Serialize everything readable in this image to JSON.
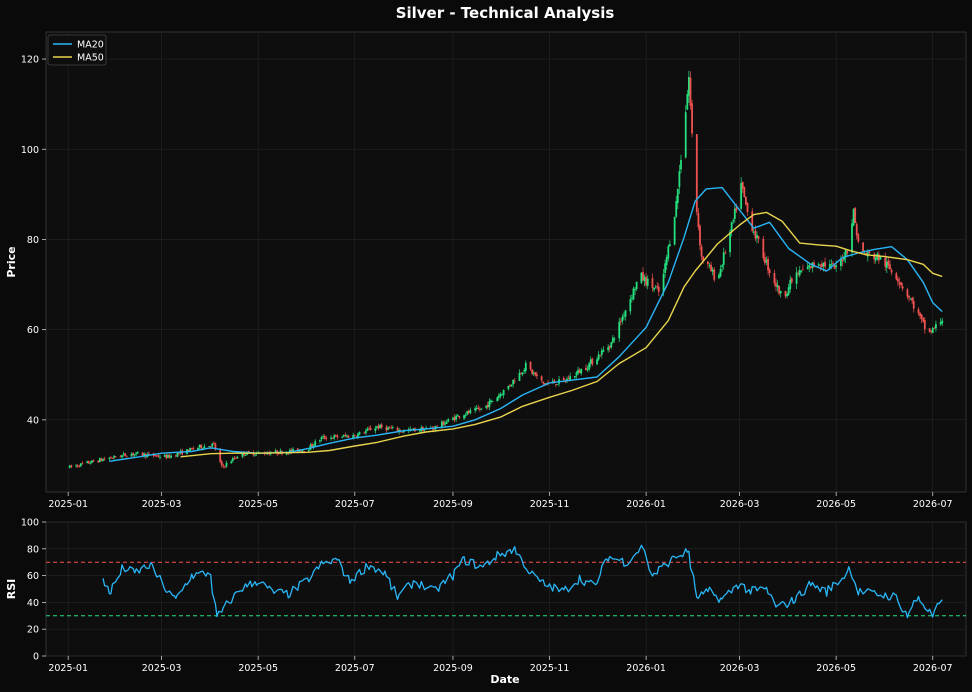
{
  "chart_data": [
    {
      "type": "candlestick",
      "title": "Silver - Technical Analysis",
      "ylabel": "Price",
      "xlabel": "",
      "x_range": [
        "2024-12-18",
        "2026-07-22"
      ],
      "ylim": [
        24,
        126
      ],
      "yticks": [
        40,
        60,
        80,
        100,
        120
      ],
      "xticks": [
        "2025-01",
        "2025-03",
        "2025-05",
        "2025-07",
        "2025-09",
        "2025-11",
        "2026-01",
        "2026-03",
        "2026-05",
        "2026-07"
      ],
      "grid": true,
      "legend": "top-left",
      "colors": {
        "up": "#26e07f",
        "down": "#ef5350",
        "ma20": "#29b6f6",
        "ma50": "#e8d44d"
      },
      "series": [
        {
          "name": "MA20",
          "color": "#29b6f6",
          "points": [
            [
              "2025-01-27",
              30.8
            ],
            [
              "2025-02-15",
              31.8
            ],
            [
              "2025-03-01",
              32.6
            ],
            [
              "2025-03-20",
              33.0
            ],
            [
              "2025-04-01",
              33.8
            ],
            [
              "2025-04-15",
              33.0
            ],
            [
              "2025-05-01",
              32.6
            ],
            [
              "2025-05-20",
              32.8
            ],
            [
              "2025-06-01",
              33.6
            ],
            [
              "2025-06-15",
              34.8
            ],
            [
              "2025-07-01",
              36.0
            ],
            [
              "2025-07-15",
              36.6
            ],
            [
              "2025-08-01",
              37.6
            ],
            [
              "2025-08-15",
              38.0
            ],
            [
              "2025-09-01",
              38.6
            ],
            [
              "2025-09-15",
              40.0
            ],
            [
              "2025-10-01",
              42.5
            ],
            [
              "2025-10-15",
              45.5
            ],
            [
              "2025-11-01",
              48.2
            ],
            [
              "2025-11-15",
              48.8
            ],
            [
              "2025-12-01",
              49.5
            ],
            [
              "2025-12-15",
              54.0
            ],
            [
              "2026-01-01",
              60.5
            ],
            [
              "2026-01-15",
              70.5
            ],
            [
              "2026-01-25",
              80.5
            ],
            [
              "2026-02-01",
              88.5
            ],
            [
              "2026-02-08",
              91.2
            ],
            [
              "2026-02-18",
              91.5
            ],
            [
              "2026-03-01",
              86.5
            ],
            [
              "2026-03-10",
              82.5
            ],
            [
              "2026-03-20",
              83.8
            ],
            [
              "2026-04-01",
              78.0
            ],
            [
              "2026-04-15",
              74.5
            ],
            [
              "2026-04-25",
              73.0
            ],
            [
              "2026-05-05",
              76.0
            ],
            [
              "2026-05-15",
              77.0
            ],
            [
              "2026-05-25",
              77.8
            ],
            [
              "2026-06-05",
              78.4
            ],
            [
              "2026-06-15",
              75.5
            ],
            [
              "2026-06-25",
              70.5
            ],
            [
              "2026-07-01",
              66.0
            ],
            [
              "2026-07-07",
              64.0
            ]
          ]
        },
        {
          "name": "MA50",
          "color": "#e8d44d",
          "points": [
            [
              "2025-03-13",
              31.8
            ],
            [
              "2025-04-01",
              32.5
            ],
            [
              "2025-04-15",
              32.6
            ],
            [
              "2025-05-01",
              32.6
            ],
            [
              "2025-06-01",
              32.8
            ],
            [
              "2025-06-15",
              33.2
            ],
            [
              "2025-07-01",
              34.2
            ],
            [
              "2025-07-15",
              35.0
            ],
            [
              "2025-08-01",
              36.4
            ],
            [
              "2025-08-15",
              37.3
            ],
            [
              "2025-09-01",
              38.0
            ],
            [
              "2025-09-15",
              39.0
            ],
            [
              "2025-10-01",
              40.6
            ],
            [
              "2025-10-15",
              43.0
            ],
            [
              "2025-11-01",
              45.0
            ],
            [
              "2025-11-15",
              46.5
            ],
            [
              "2025-12-01",
              48.5
            ],
            [
              "2025-12-15",
              52.5
            ],
            [
              "2026-01-01",
              56.0
            ],
            [
              "2026-01-15",
              62.0
            ],
            [
              "2026-01-25",
              69.5
            ],
            [
              "2026-02-01",
              73.0
            ],
            [
              "2026-02-15",
              79.0
            ],
            [
              "2026-03-01",
              83.2
            ],
            [
              "2026-03-10",
              85.5
            ],
            [
              "2026-03-18",
              86.0
            ],
            [
              "2026-03-28",
              84.0
            ],
            [
              "2026-04-08",
              79.2
            ],
            [
              "2026-04-20",
              78.8
            ],
            [
              "2026-05-01",
              78.5
            ],
            [
              "2026-05-10",
              77.5
            ],
            [
              "2026-05-20",
              76.6
            ],
            [
              "2026-06-01",
              76.2
            ],
            [
              "2026-06-15",
              75.5
            ],
            [
              "2026-06-25",
              74.5
            ],
            [
              "2026-07-01",
              72.5
            ],
            [
              "2026-07-07",
              71.8
            ]
          ]
        }
      ]
    },
    {
      "type": "line",
      "ylabel": "RSI",
      "xlabel": "Date",
      "x_range": [
        "2024-12-18",
        "2026-07-22"
      ],
      "ylim": [
        0,
        100
      ],
      "yticks": [
        0,
        20,
        40,
        60,
        80,
        100
      ],
      "xticks": [
        "2025-01",
        "2025-03",
        "2025-05",
        "2025-07",
        "2025-09",
        "2025-11",
        "2026-01",
        "2026-03",
        "2026-05",
        "2026-07"
      ],
      "thresholds": [
        {
          "value": 70,
          "color": "#ef5350"
        },
        {
          "value": 30,
          "color": "#26e07f"
        }
      ],
      "series": [
        {
          "name": "RSI",
          "color": "#29b6f6",
          "points": [
            [
              "2025-01-23",
              56
            ],
            [
              "2025-01-28",
              48
            ],
            [
              "2025-02-05",
              66
            ],
            [
              "2025-02-12",
              62
            ],
            [
              "2025-02-22",
              68
            ],
            [
              "2025-03-05",
              48
            ],
            [
              "2025-03-10",
              42
            ],
            [
              "2025-03-20",
              60
            ],
            [
              "2025-04-01",
              62
            ],
            [
              "2025-04-05",
              28
            ],
            [
              "2025-04-10",
              36
            ],
            [
              "2025-04-20",
              50
            ],
            [
              "2025-05-01",
              56
            ],
            [
              "2025-05-10",
              48
            ],
            [
              "2025-05-20",
              46
            ],
            [
              "2025-06-01",
              56
            ],
            [
              "2025-06-10",
              68
            ],
            [
              "2025-06-20",
              72
            ],
            [
              "2025-06-28",
              56
            ],
            [
              "2025-07-10",
              68
            ],
            [
              "2025-07-20",
              62
            ],
            [
              "2025-07-28",
              44
            ],
            [
              "2025-08-08",
              56
            ],
            [
              "2025-08-20",
              48
            ],
            [
              "2025-09-01",
              60
            ],
            [
              "2025-09-08",
              72
            ],
            [
              "2025-09-20",
              66
            ],
            [
              "2025-09-28",
              74
            ],
            [
              "2025-10-10",
              80
            ],
            [
              "2025-10-20",
              62
            ],
            [
              "2025-10-28",
              54
            ],
            [
              "2025-11-10",
              48
            ],
            [
              "2025-11-20",
              58
            ],
            [
              "2025-11-30",
              52
            ],
            [
              "2025-12-08",
              74
            ],
            [
              "2025-12-20",
              70
            ],
            [
              "2025-12-30",
              82
            ],
            [
              "2026-01-05",
              60
            ],
            [
              "2026-01-20",
              74
            ],
            [
              "2026-01-28",
              78
            ],
            [
              "2026-02-02",
              44
            ],
            [
              "2026-02-10",
              48
            ],
            [
              "2026-02-18",
              42
            ],
            [
              "2026-03-01",
              54
            ],
            [
              "2026-03-08",
              48
            ],
            [
              "2026-03-18",
              50
            ],
            [
              "2026-03-25",
              36
            ],
            [
              "2026-04-05",
              42
            ],
            [
              "2026-04-15",
              54
            ],
            [
              "2026-04-25",
              48
            ],
            [
              "2026-05-05",
              58
            ],
            [
              "2026-05-10",
              66
            ],
            [
              "2026-05-15",
              48
            ],
            [
              "2026-05-28",
              46
            ],
            [
              "2026-06-08",
              44
            ],
            [
              "2026-06-15",
              30
            ],
            [
              "2026-06-22",
              44
            ],
            [
              "2026-07-01",
              30
            ],
            [
              "2026-07-07",
              42
            ]
          ]
        }
      ]
    }
  ]
}
